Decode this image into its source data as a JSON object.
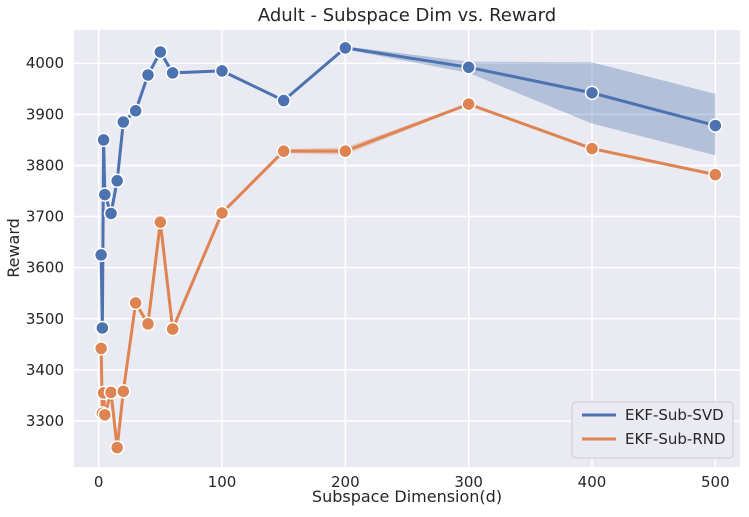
{
  "chart_data": {
    "type": "line",
    "title": "Adult - Subspace Dim vs. Reward",
    "xlabel": "Subspace Dimension(d)",
    "ylabel": "Reward",
    "xlim": [
      -20,
      520
    ],
    "ylim": [
      3210,
      4065
    ],
    "xticks": [
      0,
      100,
      200,
      300,
      400,
      500
    ],
    "yticks": [
      3300,
      3400,
      3500,
      3600,
      3700,
      3800,
      3900,
      4000
    ],
    "grid": true,
    "legend_position": "lower-right",
    "series": [
      {
        "name": "EKF-Sub-SVD",
        "color": "#4c72b0",
        "x": [
          2,
          3,
          4,
          5,
          10,
          15,
          20,
          30,
          40,
          50,
          60,
          100,
          150,
          200,
          300,
          400,
          500
        ],
        "y": [
          3625,
          3482,
          3850,
          3743,
          3706,
          3770,
          3885,
          3907,
          3977,
          4022,
          3981,
          3985,
          3927,
          4030,
          3992,
          3942,
          3878
        ],
        "band_upper": [
          3625,
          3482,
          3850,
          3743,
          3706,
          3770,
          3885,
          3907,
          3977,
          4022,
          3981,
          3985,
          3930,
          4033,
          4003,
          4002,
          3940
        ],
        "band_lower": [
          3625,
          3482,
          3850,
          3743,
          3706,
          3770,
          3885,
          3907,
          3977,
          4022,
          3981,
          3985,
          3924,
          4027,
          3981,
          3882,
          3820
        ]
      },
      {
        "name": "EKF-Sub-RND",
        "color": "#dd8452",
        "x": [
          2,
          3,
          4,
          5,
          10,
          15,
          20,
          30,
          40,
          50,
          60,
          100,
          150,
          200,
          300,
          400,
          500
        ],
        "y": [
          3442,
          3315,
          3355,
          3312,
          3356,
          3248,
          3358,
          3531,
          3490,
          3689,
          3480,
          3707,
          3828,
          3828,
          3920,
          3833,
          3782
        ],
        "band_upper": [
          3442,
          3315,
          3355,
          3312,
          3356,
          3248,
          3358,
          3531,
          3490,
          3689,
          3480,
          3707,
          3832,
          3835,
          3922,
          3833,
          3782
        ],
        "band_lower": [
          3442,
          3315,
          3355,
          3312,
          3356,
          3248,
          3358,
          3531,
          3490,
          3689,
          3480,
          3707,
          3824,
          3821,
          3918,
          3833,
          3782
        ]
      }
    ]
  }
}
